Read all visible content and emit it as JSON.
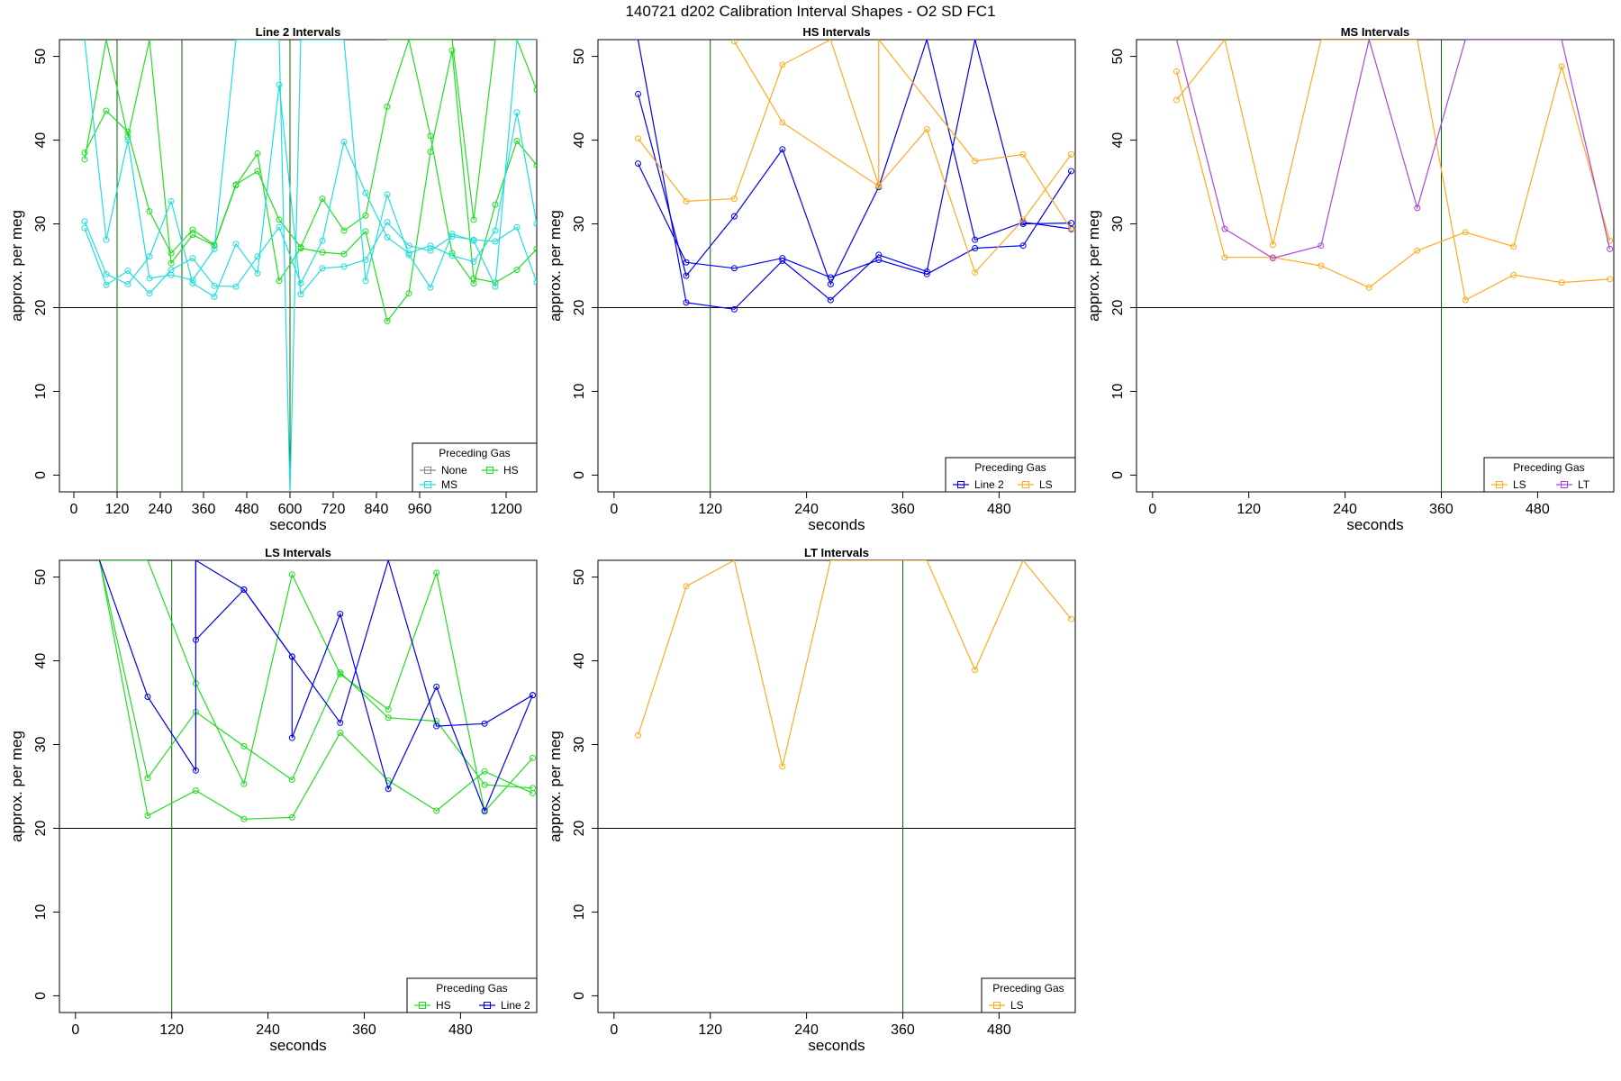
{
  "title": "140721    d202   Calibration Interval Shapes - O2 SD FC1",
  "colors": {
    "Line 2": "#0000ee",
    "HS": "#22dd22",
    "MS": "#22dddd",
    "LS": "#ffaa22",
    "LT": "#aa44dd",
    "None": "#888888",
    "vline": "#006600",
    "hline": "#000000"
  },
  "chart_data": [
    {
      "type": "line",
      "title": "Line 2 Intervals",
      "xlabel": "seconds",
      "ylabel": "approx. per meg",
      "xlim": [
        -40,
        1285
      ],
      "ylim": [
        -2,
        52
      ],
      "xticks": [
        0,
        120,
        240,
        360,
        480,
        600,
        720,
        840,
        960,
        1200
      ],
      "yticks": [
        0,
        10,
        20,
        30,
        40,
        50
      ],
      "hline": 20,
      "vlines": [
        120,
        300,
        600
      ],
      "legend": {
        "title": "Preceding Gas",
        "position": "bottom-right",
        "entries": [
          "None",
          "HS",
          "MS"
        ]
      },
      "series": [
        {
          "name": "HS",
          "x": [
            30,
            90,
            150,
            210,
            270,
            330,
            390,
            450,
            510,
            570,
            630,
            690,
            750,
            810,
            870,
            930,
            990,
            1050,
            1110,
            1170,
            1230,
            1285
          ],
          "y": [
            38.5,
            43.5,
            41.0,
            31.5,
            26.5,
            29.3,
            27.5,
            34.7,
            36.3,
            30.5,
            27.2,
            33.0,
            29.2,
            31.0,
            44.0,
            52.0,
            40.5,
            26.5,
            22.9,
            32.3,
            39.9,
            37.0
          ]
        },
        {
          "name": "HS",
          "x": [
            30,
            90,
            150,
            210,
            270,
            330,
            390,
            450,
            510,
            570,
            630,
            690,
            750,
            810,
            870,
            930,
            990,
            1050,
            1110,
            1170,
            1230,
            1285
          ],
          "y": [
            37.7,
            52.0,
            40.4,
            52.0,
            25.3,
            28.7,
            27.4,
            34.6,
            38.4,
            23.2,
            27.1,
            26.6,
            26.4,
            29.1,
            18.4,
            21.7,
            38.6,
            50.7,
            23.5,
            23.0,
            24.5,
            27.0
          ]
        },
        {
          "name": "HS",
          "x": [
            870,
            930,
            990,
            1050,
            1110,
            1170,
            1230,
            1285
          ],
          "y": [
            52.0,
            52.0,
            52.0,
            52.0,
            30.5,
            52.0,
            52.0,
            46.0
          ]
        },
        {
          "name": "MS",
          "x": [
            30,
            90,
            150,
            210,
            270,
            330,
            390,
            450,
            510,
            570,
            630,
            690,
            750,
            810,
            870,
            930,
            990,
            1050,
            1110,
            1170,
            1230,
            1285
          ],
          "y": [
            30.3,
            24.0,
            22.8,
            26.1,
            32.7,
            22.9,
            21.3,
            27.6,
            24.1,
            46.6,
            21.6,
            24.7,
            24.9,
            25.7,
            30.2,
            27.4,
            26.8,
            28.5,
            28.1,
            27.9,
            29.6,
            23.0
          ]
        },
        {
          "name": "MS",
          "x": [
            30,
            90,
            150,
            210,
            270,
            330,
            390,
            450,
            510,
            570,
            630,
            690,
            750,
            810,
            870,
            930,
            990,
            1050,
            1110,
            1170,
            1230,
            1285
          ],
          "y": [
            29.5,
            22.7,
            24.4,
            21.7,
            24.5,
            25.9,
            22.6,
            22.5,
            26.1,
            29.6,
            22.9,
            28.0,
            39.8,
            33.7,
            28.4,
            26.5,
            27.4,
            26.2,
            25.5,
            29.2,
            43.3,
            30.0
          ]
        },
        {
          "name": "MS",
          "x": [
            30,
            90,
            150,
            210,
            270,
            330,
            390,
            450,
            510,
            570,
            600,
            630,
            690,
            750,
            810,
            870,
            930,
            990,
            1050,
            1110,
            1170,
            1230,
            1285
          ],
          "y": [
            52.0,
            28.1,
            40.0,
            23.5,
            23.9,
            23.3,
            27.0,
            52.0,
            52.0,
            52.0,
            -2.0,
            52.0,
            52.0,
            52.0,
            23.2,
            33.5,
            26.3,
            22.4,
            28.8,
            28.0,
            22.5,
            52.0,
            52.0
          ]
        }
      ]
    },
    {
      "type": "line",
      "title": "HS Intervals",
      "xlabel": "seconds",
      "ylabel": "approx. per meg",
      "xlim": [
        -20,
        575
      ],
      "ylim": [
        -2,
        52
      ],
      "xticks": [
        0,
        120,
        240,
        360,
        480
      ],
      "yticks": [
        0,
        10,
        20,
        30,
        40,
        50
      ],
      "hline": 20,
      "vlines": [
        120
      ],
      "legend": {
        "title": "Preceding Gas",
        "position": "bottom-right",
        "entries": [
          "Line 2",
          "LS"
        ]
      },
      "series": [
        {
          "name": "Line 2",
          "x": [
            30,
            90,
            150,
            210,
            270,
            330,
            390,
            450,
            510,
            570
          ],
          "y": [
            45.5,
            23.8,
            30.9,
            38.9,
            22.8,
            34.4,
            52.0,
            28.1,
            30.2,
            29.4
          ]
        },
        {
          "name": "Line 2",
          "x": [
            30,
            90,
            150,
            210,
            270,
            330,
            390,
            450,
            510,
            570
          ],
          "y": [
            37.2,
            25.4,
            24.7,
            25.9,
            23.6,
            25.7,
            24.0,
            27.1,
            27.4,
            36.3
          ]
        },
        {
          "name": "Line 2",
          "x": [
            30,
            90,
            150,
            210,
            270,
            330,
            390,
            450,
            510,
            570
          ],
          "y": [
            52.0,
            20.6,
            19.8,
            25.6,
            20.9,
            26.3,
            24.3,
            52.0,
            30.0,
            30.1
          ]
        },
        {
          "name": "LS",
          "x": [
            30,
            90,
            150,
            210,
            270,
            330,
            390,
            450,
            510,
            570
          ],
          "y": [
            40.2,
            32.7,
            33.0,
            49.0,
            52.0,
            34.6,
            41.3,
            24.2,
            30.5,
            38.3
          ]
        },
        {
          "name": "LS",
          "x": [
            150,
            210,
            330,
            330,
            450,
            510,
            570
          ],
          "y": [
            51.8,
            42.1,
            34.5,
            52.0,
            37.5,
            38.3,
            29.3
          ]
        }
      ]
    },
    {
      "type": "line",
      "title": "MS Intervals",
      "xlabel": "seconds",
      "ylabel": "approx. per meg",
      "xlim": [
        -20,
        575
      ],
      "ylim": [
        -2,
        52
      ],
      "xticks": [
        0,
        120,
        240,
        360,
        480
      ],
      "yticks": [
        0,
        10,
        20,
        30,
        40,
        50
      ],
      "hline": 20,
      "vlines": [
        360
      ],
      "legend": {
        "title": "Preceding Gas",
        "position": "bottom-right",
        "entries": [
          "LS",
          "LT"
        ]
      },
      "series": [
        {
          "name": "LS",
          "x": [
            30,
            90,
            150,
            210,
            270,
            330,
            390,
            450,
            510,
            570
          ],
          "y": [
            48.2,
            26.0,
            26.0,
            25.0,
            22.4,
            26.8,
            29.0,
            27.3,
            48.8,
            28.0
          ]
        },
        {
          "name": "LS",
          "x": [
            30,
            90,
            150,
            210,
            270,
            330,
            390,
            450,
            510,
            570
          ],
          "y": [
            44.8,
            52.0,
            27.5,
            52.0,
            52.0,
            52.0,
            20.9,
            23.9,
            23.0,
            23.4
          ]
        },
        {
          "name": "LT",
          "x": [
            30,
            90,
            150,
            210,
            270,
            330,
            390,
            450,
            510,
            570
          ],
          "y": [
            52.0,
            29.4,
            25.9,
            27.4,
            52.0,
            31.9,
            52.0,
            52.0,
            52.0,
            27.0
          ]
        }
      ]
    },
    {
      "type": "line",
      "title": "LS Intervals",
      "xlabel": "seconds",
      "ylabel": "approx. per meg",
      "xlim": [
        -20,
        575
      ],
      "ylim": [
        -2,
        52
      ],
      "xticks": [
        0,
        120,
        240,
        360,
        480
      ],
      "yticks": [
        0,
        10,
        20,
        30,
        40,
        50
      ],
      "hline": 20,
      "vlines": [
        120
      ],
      "legend": {
        "title": "Preceding Gas",
        "position": "bottom-right",
        "entries": [
          "HS",
          "Line 2"
        ]
      },
      "series": [
        {
          "name": "HS",
          "x": [
            30,
            90,
            150,
            210,
            270,
            330,
            390,
            450,
            510,
            570
          ],
          "y": [
            52.0,
            26.0,
            33.9,
            29.8,
            25.8,
            38.6,
            33.2,
            32.8,
            25.2,
            24.8
          ]
        },
        {
          "name": "HS",
          "x": [
            30,
            90,
            150,
            210,
            270,
            330,
            390,
            450,
            510,
            570
          ],
          "y": [
            52.0,
            21.5,
            24.5,
            21.1,
            21.3,
            31.4,
            25.7,
            22.1,
            26.8,
            24.2
          ]
        },
        {
          "name": "HS",
          "x": [
            30,
            90,
            150,
            210,
            270,
            330,
            390,
            450,
            510,
            570
          ],
          "y": [
            52.0,
            52.0,
            37.3,
            25.3,
            50.3,
            38.4,
            34.2,
            50.5,
            22.0,
            28.4
          ]
        },
        {
          "name": "Line 2",
          "x": [
            30,
            90,
            150,
            150,
            210,
            270,
            270,
            330,
            390,
            450,
            510,
            570
          ],
          "y": [
            52.0,
            35.7,
            26.9,
            52.0,
            48.5,
            40.5,
            30.8,
            45.6,
            24.7,
            36.9,
            22.1,
            35.9
          ]
        },
        {
          "name": "Line 2",
          "x": [
            150,
            150,
            210,
            270,
            330,
            390,
            450,
            510,
            570
          ],
          "y": [
            52.0,
            42.5,
            48.5,
            40.5,
            32.6,
            52.0,
            32.2,
            32.5,
            35.9
          ]
        }
      ]
    },
    {
      "type": "line",
      "title": "LT Intervals",
      "xlabel": "seconds",
      "ylabel": "approx. per meg",
      "xlim": [
        -20,
        575
      ],
      "ylim": [
        -2,
        52
      ],
      "xticks": [
        0,
        120,
        240,
        360,
        480
      ],
      "yticks": [
        0,
        10,
        20,
        30,
        40,
        50
      ],
      "hline": 20,
      "vlines": [
        360
      ],
      "legend": {
        "title": "Preceding Gas",
        "position": "bottom-right",
        "entries": [
          "LS"
        ]
      },
      "series": [
        {
          "name": "LS",
          "x": [
            30,
            90,
            150,
            210,
            270,
            330,
            390,
            450,
            510,
            570
          ],
          "y": [
            31.1,
            48.9,
            52.0,
            27.4,
            52.0,
            52.0,
            52.0,
            38.9,
            52.0,
            45.0
          ]
        }
      ]
    }
  ]
}
